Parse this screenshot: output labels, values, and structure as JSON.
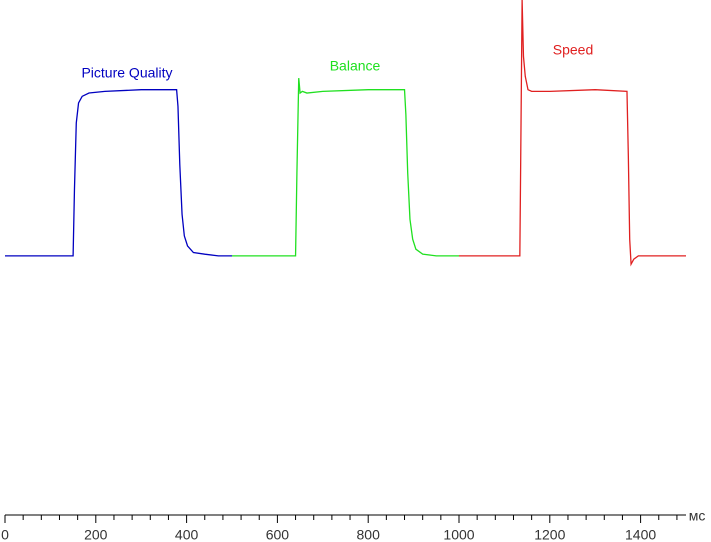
{
  "chart_data": {
    "type": "line",
    "x_label": "мс",
    "xlim": [
      0,
      1500
    ],
    "xticks": [
      0,
      200,
      400,
      600,
      800,
      1000,
      1200,
      1400
    ],
    "xminor_ticks": [
      40,
      80,
      120,
      160,
      240,
      280,
      320,
      360,
      440,
      480,
      520,
      560,
      640,
      680,
      720,
      760,
      840,
      880,
      920,
      960,
      1040,
      1080,
      1120,
      1160,
      1240,
      1280,
      1320,
      1360,
      1440,
      1480
    ],
    "ylim": [
      -156,
      154
    ],
    "series": [
      {
        "name": "Picture Quality",
        "color": "#0000c0",
        "x": [
          0,
          145,
          150,
          153,
          157,
          162,
          170,
          185,
          220,
          300,
          378,
          381,
          385,
          390,
          395,
          402,
          415,
          440,
          470,
          500
        ],
        "values": [
          0,
          0,
          0,
          40,
          80,
          92,
          96,
          98,
          99,
          100,
          100,
          90,
          55,
          25,
          12,
          6,
          2,
          1,
          0,
          0
        ]
      },
      {
        "name": "Balance",
        "color": "#20e020",
        "x": [
          500,
          560,
          640,
          643,
          647,
          650,
          655,
          665,
          700,
          800,
          880,
          883,
          887,
          892,
          898,
          905,
          920,
          950,
          1000
        ],
        "values": [
          0,
          0,
          0,
          50,
          107,
          98,
          99,
          98,
          99,
          100,
          100,
          85,
          50,
          22,
          10,
          4,
          1,
          0,
          0
        ]
      },
      {
        "name": "Speed",
        "color": "#e02020",
        "x": [
          1000,
          1080,
          1134,
          1136,
          1139,
          1142,
          1146,
          1152,
          1160,
          1200,
          1300,
          1370,
          1373,
          1376,
          1379,
          1385,
          1395,
          1420,
          1500
        ],
        "values": [
          0,
          0,
          0,
          60,
          154,
          120,
          108,
          100,
          99,
          99,
          100,
          99,
          60,
          10,
          -5,
          -2,
          0,
          0,
          0
        ]
      }
    ]
  }
}
